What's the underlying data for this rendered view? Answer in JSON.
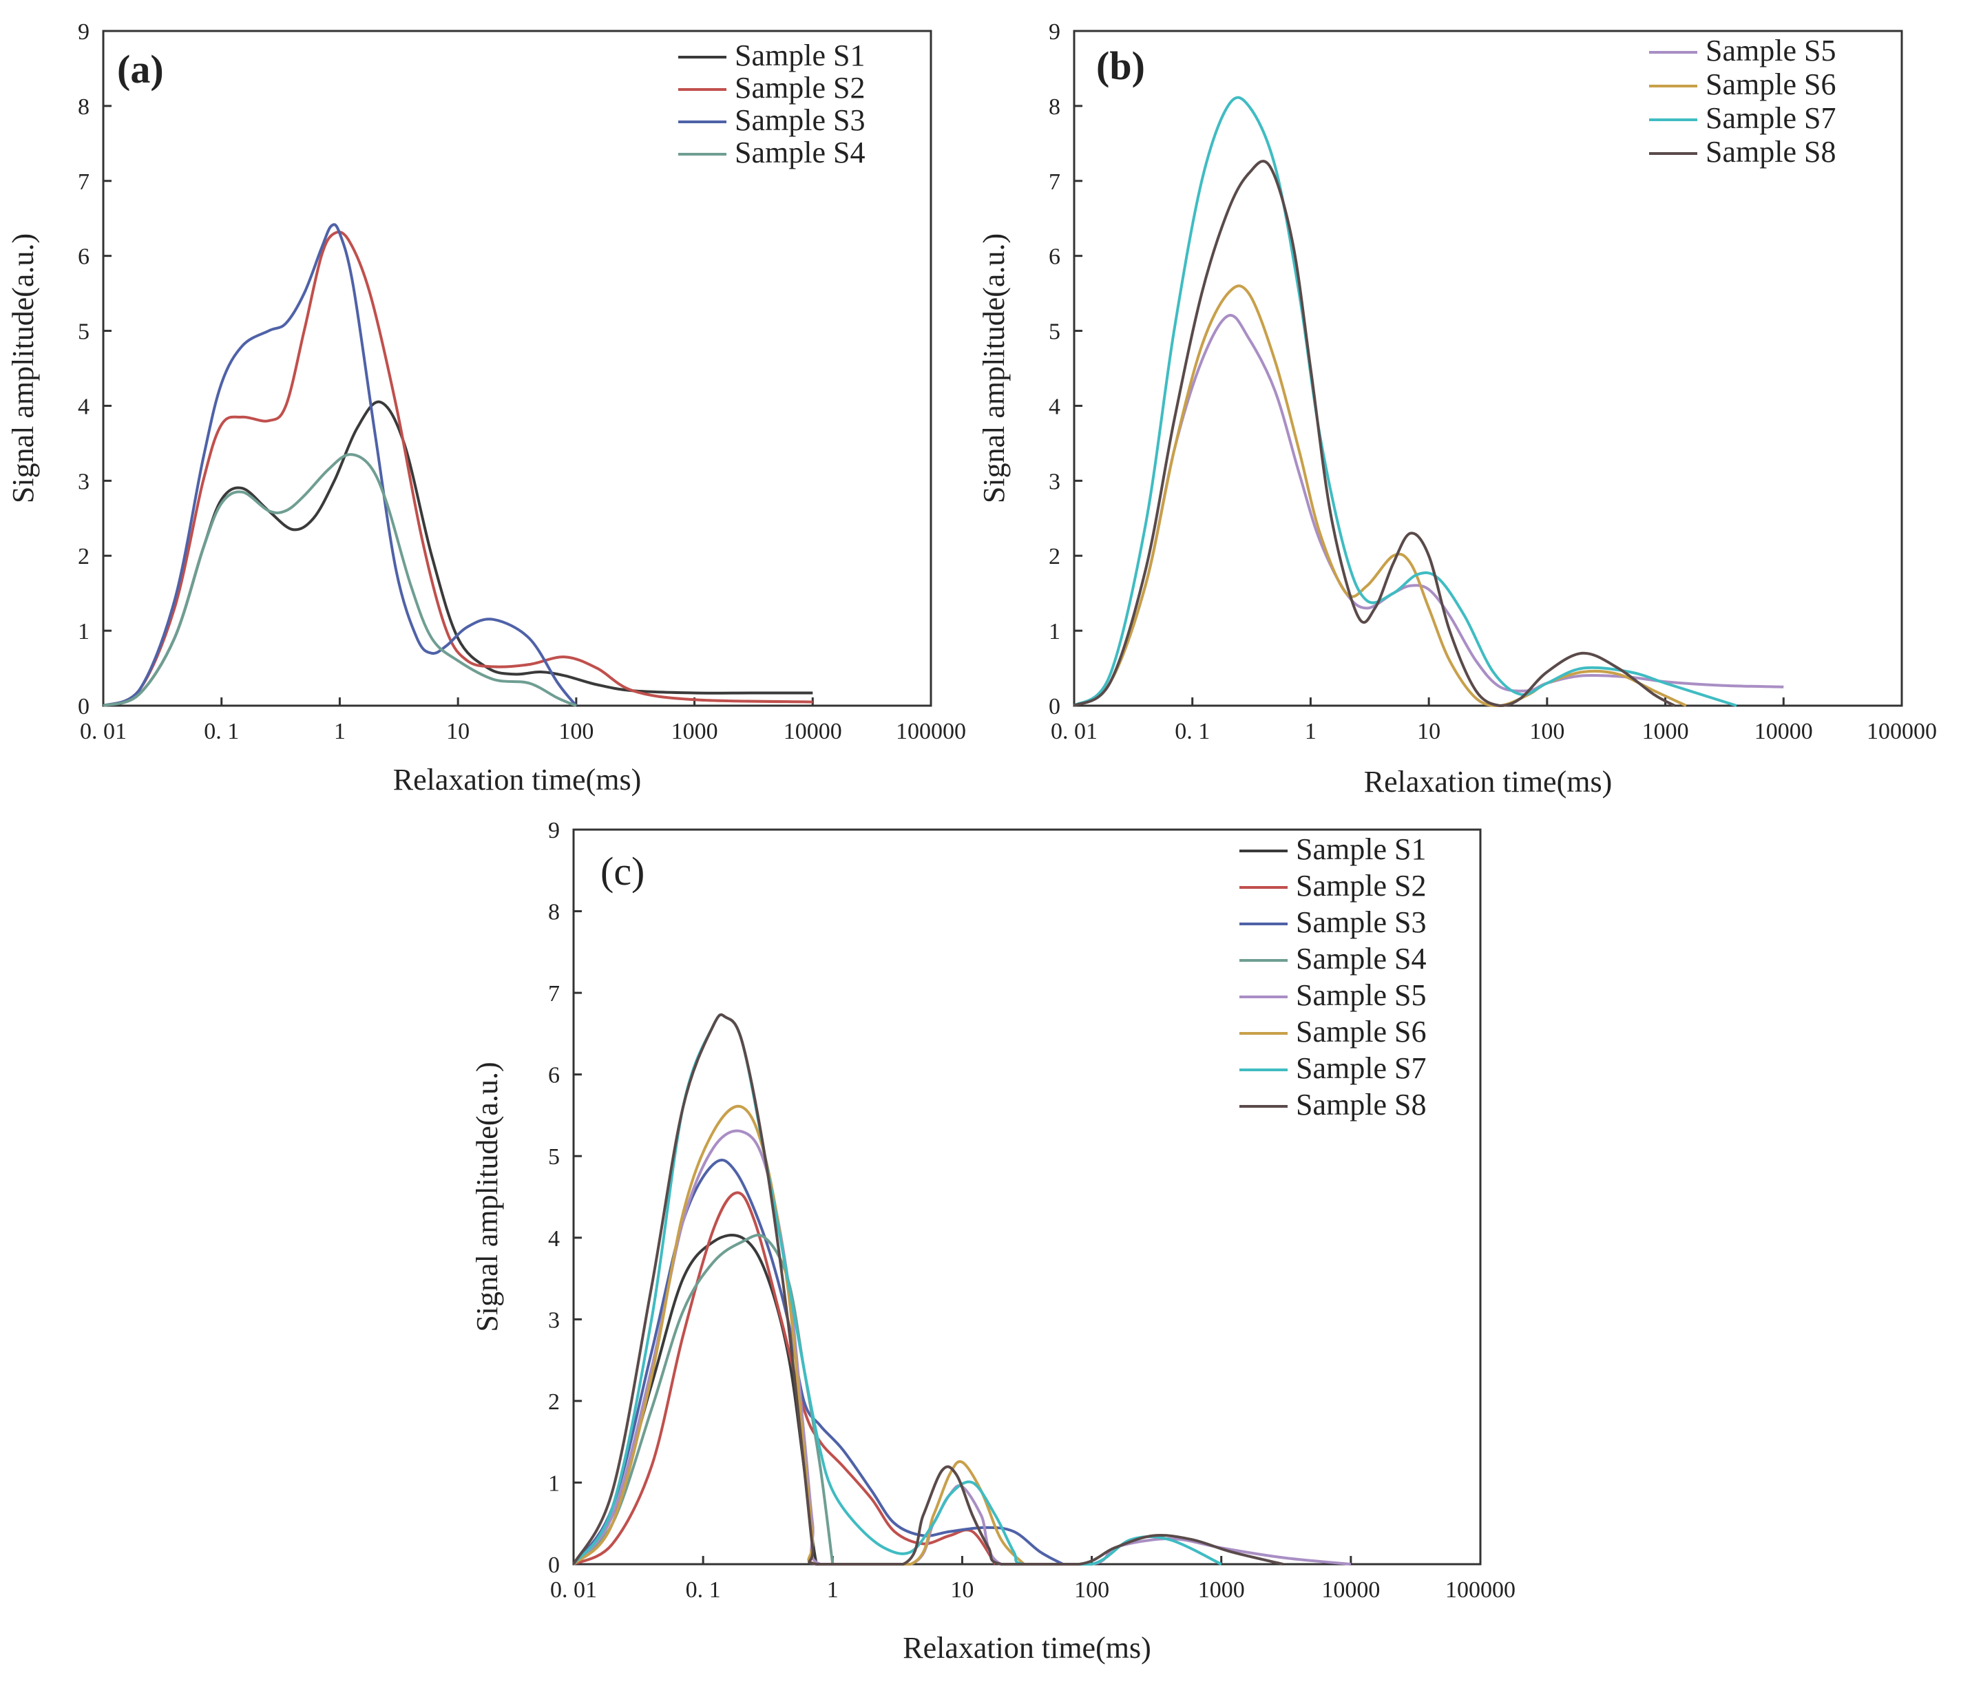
{
  "colors": {
    "S1": "#3a3a3a",
    "S2": "#c0504d",
    "S3": "#4f62a8",
    "S4": "#6f9e92",
    "S5": "#a98ec4",
    "S6": "#c8a04a",
    "S7": "#3fbcc2",
    "S8": "#5a4a4a"
  },
  "chart_data": [
    {
      "type": "line",
      "panel": "(a)",
      "xscale": "log",
      "xlim": [
        0.01,
        100000
      ],
      "ylim": [
        0,
        9
      ],
      "xticks": [
        0.01,
        0.1,
        1,
        10,
        100,
        1000,
        10000,
        100000
      ],
      "xtick_labels": [
        "0. 01",
        "0. 1",
        "1",
        "10",
        "100",
        "1000",
        "10000",
        "100000"
      ],
      "yticks": [
        0,
        1,
        2,
        3,
        4,
        5,
        6,
        7,
        8,
        9
      ],
      "ytick_labels": [
        "0",
        "1",
        "2",
        "3",
        "4",
        "5",
        "6",
        "7",
        "8",
        "9"
      ],
      "xlabel": "Relaxation time(ms)",
      "ylabel": "Signal amplitude(a.u.)",
      "legend_position": "top-right",
      "series": [
        {
          "name": "Sample S1",
          "key": "S1",
          "x": [
            0.01,
            0.02,
            0.04,
            0.07,
            0.1,
            0.15,
            0.25,
            0.4,
            0.6,
            0.9,
            1.4,
            2.2,
            3.5,
            6,
            10,
            18,
            30,
            50,
            80,
            150,
            300,
            1000,
            3000,
            10000
          ],
          "y": [
            0,
            0.15,
            0.9,
            2.1,
            2.75,
            2.9,
            2.6,
            2.35,
            2.5,
            3.0,
            3.7,
            4.05,
            3.5,
            2.0,
            0.9,
            0.5,
            0.42,
            0.45,
            0.4,
            0.28,
            0.2,
            0.17,
            0.17,
            0.17
          ]
        },
        {
          "name": "Sample S2",
          "key": "S2",
          "x": [
            0.01,
            0.02,
            0.04,
            0.07,
            0.1,
            0.15,
            0.25,
            0.35,
            0.5,
            0.7,
            0.9,
            1.2,
            1.8,
            3,
            5,
            8,
            12,
            20,
            40,
            80,
            150,
            300,
            1000,
            10000
          ],
          "y": [
            0,
            0.2,
            1.3,
            3.0,
            3.75,
            3.85,
            3.8,
            4.0,
            5.0,
            6.0,
            6.3,
            6.2,
            5.5,
            4.0,
            2.2,
            1.0,
            0.6,
            0.52,
            0.55,
            0.65,
            0.5,
            0.2,
            0.08,
            0.05
          ]
        },
        {
          "name": "Sample S3",
          "key": "S3",
          "x": [
            0.01,
            0.02,
            0.04,
            0.07,
            0.1,
            0.15,
            0.25,
            0.35,
            0.5,
            0.7,
            0.85,
            1.0,
            1.3,
            2,
            3,
            4.5,
            6,
            8,
            12,
            20,
            40,
            70,
            100
          ],
          "y": [
            0,
            0.2,
            1.4,
            3.3,
            4.3,
            4.8,
            5.0,
            5.1,
            5.5,
            6.1,
            6.4,
            6.3,
            5.6,
            3.6,
            1.8,
            0.9,
            0.7,
            0.8,
            1.05,
            1.15,
            0.9,
            0.3,
            0
          ]
        },
        {
          "name": "Sample S4",
          "key": "S4",
          "x": [
            0.01,
            0.02,
            0.04,
            0.07,
            0.1,
            0.15,
            0.25,
            0.35,
            0.5,
            0.8,
            1.2,
            1.8,
            2.5,
            4,
            6,
            10,
            20,
            40,
            70,
            100
          ],
          "y": [
            0,
            0.15,
            0.9,
            2.1,
            2.7,
            2.85,
            2.6,
            2.6,
            2.8,
            3.15,
            3.35,
            3.2,
            2.7,
            1.6,
            0.9,
            0.6,
            0.35,
            0.3,
            0.1,
            0
          ]
        }
      ]
    },
    {
      "type": "line",
      "panel": "(b)",
      "xscale": "log",
      "xlim": [
        0.01,
        100000
      ],
      "ylim": [
        0,
        9
      ],
      "xticks": [
        0.01,
        0.1,
        1,
        10,
        100,
        1000,
        10000,
        100000
      ],
      "xtick_labels": [
        "0. 01",
        "0. 1",
        "1",
        "10",
        "100",
        "1000",
        "10000",
        "100000"
      ],
      "yticks": [
        0,
        1,
        2,
        3,
        4,
        5,
        6,
        7,
        8,
        9
      ],
      "ytick_labels": [
        "0",
        "1",
        "2",
        "3",
        "4",
        "5",
        "6",
        "7",
        "8",
        "9"
      ],
      "xlabel": "Relaxation time(ms)",
      "ylabel": "Signal amplitude(a.u.)",
      "legend_position": "top-right",
      "series": [
        {
          "name": "Sample S5",
          "key": "S5",
          "x": [
            0.01,
            0.02,
            0.04,
            0.07,
            0.12,
            0.2,
            0.3,
            0.5,
            0.8,
            1.2,
            2,
            3,
            5,
            7,
            10,
            15,
            25,
            40,
            70,
            100,
            200,
            500,
            1000,
            3000,
            10000
          ],
          "y": [
            0,
            0.3,
            1.6,
            3.4,
            4.6,
            5.2,
            4.9,
            4.2,
            3.1,
            2.2,
            1.5,
            1.3,
            1.5,
            1.6,
            1.55,
            1.2,
            0.6,
            0.25,
            0.2,
            0.3,
            0.4,
            0.38,
            0.32,
            0.27,
            0.25
          ]
        },
        {
          "name": "Sample S6",
          "key": "S6",
          "x": [
            0.01,
            0.02,
            0.04,
            0.07,
            0.12,
            0.2,
            0.3,
            0.5,
            0.8,
            1.2,
            2,
            3,
            5,
            7,
            10,
            15,
            25,
            40,
            70,
            100,
            200,
            400,
            800,
            1500
          ],
          "y": [
            0,
            0.3,
            1.6,
            3.4,
            4.8,
            5.5,
            5.5,
            4.6,
            3.4,
            2.3,
            1.5,
            1.6,
            2.0,
            1.9,
            1.3,
            0.6,
            0.1,
            0,
            0.15,
            0.3,
            0.45,
            0.42,
            0.2,
            0
          ]
        },
        {
          "name": "Sample S7",
          "key": "S7",
          "x": [
            0.01,
            0.02,
            0.04,
            0.07,
            0.12,
            0.2,
            0.3,
            0.5,
            0.8,
            1.2,
            2,
            3,
            5,
            8,
            12,
            20,
            35,
            60,
            100,
            200,
            500,
            1000,
            2000,
            4000
          ],
          "y": [
            0,
            0.4,
            2.4,
            5.0,
            7.0,
            8.0,
            8.0,
            7.2,
            5.5,
            3.6,
            2.0,
            1.4,
            1.5,
            1.75,
            1.7,
            1.2,
            0.45,
            0.15,
            0.3,
            0.5,
            0.45,
            0.3,
            0.15,
            0
          ]
        },
        {
          "name": "Sample S8",
          "key": "S8",
          "x": [
            0.01,
            0.02,
            0.04,
            0.07,
            0.12,
            0.2,
            0.3,
            0.45,
            0.7,
            1.0,
            1.5,
            2.5,
            3.5,
            5,
            7,
            10,
            15,
            25,
            40,
            60,
            100,
            200,
            400,
            800,
            1200
          ],
          "y": [
            0,
            0.3,
            1.8,
            3.8,
            5.5,
            6.6,
            7.1,
            7.2,
            6.2,
            4.5,
            2.5,
            1.2,
            1.3,
            1.9,
            2.3,
            2.0,
            1.0,
            0.2,
            0,
            0.1,
            0.45,
            0.7,
            0.5,
            0.15,
            0
          ]
        }
      ]
    },
    {
      "type": "line",
      "panel": "(c)",
      "xscale": "log",
      "xlim": [
        0.01,
        100000
      ],
      "ylim": [
        0,
        9
      ],
      "xticks": [
        0.01,
        0.1,
        1,
        10,
        100,
        1000,
        10000,
        100000
      ],
      "xtick_labels": [
        "0. 01",
        "0. 1",
        "1",
        "10",
        "100",
        "1000",
        "10000",
        "100000"
      ],
      "yticks": [
        0,
        1,
        2,
        3,
        4,
        5,
        6,
        7,
        8,
        9
      ],
      "ytick_labels": [
        "0",
        "1",
        "2",
        "3",
        "4",
        "5",
        "6",
        "7",
        "8",
        "9"
      ],
      "xlabel": "Relaxation time(ms)",
      "ylabel": "Signal amplitude(a.u.)",
      "legend_position": "top-right",
      "series": [
        {
          "name": "Sample S1",
          "key": "S1",
          "x": [
            0.01,
            0.02,
            0.04,
            0.07,
            0.12,
            0.2,
            0.3,
            0.45,
            0.6,
            0.7,
            0.75
          ],
          "y": [
            0,
            0.6,
            2.2,
            3.5,
            3.95,
            4.0,
            3.6,
            2.6,
            1.2,
            0.3,
            0
          ]
        },
        {
          "name": "Sample S2",
          "key": "S2",
          "x": [
            0.01,
            0.02,
            0.04,
            0.07,
            0.12,
            0.18,
            0.25,
            0.4,
            0.6,
            0.8,
            1.2,
            2,
            3,
            5,
            8,
            12,
            18
          ],
          "y": [
            0,
            0.25,
            1.2,
            2.8,
            4.1,
            4.55,
            4.2,
            3.0,
            1.9,
            1.5,
            1.2,
            0.8,
            0.4,
            0.25,
            0.35,
            0.4,
            0
          ]
        },
        {
          "name": "Sample S3",
          "key": "S3",
          "x": [
            0.01,
            0.02,
            0.04,
            0.07,
            0.12,
            0.18,
            0.3,
            0.45,
            0.6,
            0.8,
            1.2,
            2,
            3,
            5,
            8,
            15,
            25,
            40,
            60
          ],
          "y": [
            0,
            0.7,
            2.6,
            4.2,
            4.9,
            4.8,
            4.0,
            3.0,
            2.0,
            1.7,
            1.4,
            0.9,
            0.5,
            0.35,
            0.4,
            0.45,
            0.4,
            0.15,
            0
          ]
        },
        {
          "name": "Sample S4",
          "key": "S4",
          "x": [
            0.01,
            0.02,
            0.04,
            0.07,
            0.12,
            0.2,
            0.3,
            0.45,
            0.6,
            0.8,
            1.0
          ],
          "y": [
            0,
            0.5,
            1.9,
            3.1,
            3.7,
            3.95,
            4.0,
            3.5,
            2.4,
            1.2,
            0
          ]
        },
        {
          "name": "Sample S5",
          "key": "S5",
          "x": [
            0.01,
            0.02,
            0.04,
            0.07,
            0.12,
            0.2,
            0.3,
            0.45,
            0.6,
            0.7,
            0.8,
            4,
            6,
            8,
            10,
            14,
            20,
            100,
            150,
            300,
            500,
            1000,
            3000,
            10000
          ],
          "y": [
            0,
            0.6,
            2.4,
            4.2,
            5.1,
            5.3,
            4.9,
            3.5,
            1.6,
            0.5,
            0,
            0,
            0.5,
            0.85,
            0.95,
            0.6,
            0,
            0,
            0.2,
            0.3,
            0.3,
            0.2,
            0.08,
            0
          ]
        },
        {
          "name": "Sample S6",
          "key": "S6",
          "x": [
            0.01,
            0.02,
            0.04,
            0.07,
            0.12,
            0.2,
            0.3,
            0.45,
            0.6,
            0.7,
            0.75,
            4,
            6,
            8,
            10,
            14,
            20,
            30
          ],
          "y": [
            0,
            0.5,
            2.3,
            4.3,
            5.3,
            5.6,
            5.0,
            3.4,
            1.4,
            0.3,
            0,
            0,
            0.6,
            1.1,
            1.25,
            0.9,
            0.3,
            0
          ]
        },
        {
          "name": "Sample S7",
          "key": "S7",
          "x": [
            0.01,
            0.02,
            0.04,
            0.07,
            0.12,
            0.15,
            0.2,
            0.3,
            0.45,
            0.6,
            0.8,
            1.0,
            1.5,
            2.5,
            4,
            6,
            8,
            12,
            18,
            25,
            30,
            100,
            200,
            400,
            1000
          ],
          "y": [
            0,
            0.7,
            3.0,
            5.6,
            6.6,
            6.7,
            6.4,
            5.0,
            3.5,
            2.4,
            1.4,
            0.9,
            0.5,
            0.2,
            0.15,
            0.5,
            0.85,
            1.0,
            0.6,
            0.15,
            0,
            0,
            0.3,
            0.3,
            0
          ]
        },
        {
          "name": "Sample S8",
          "key": "S8",
          "x": [
            0.01,
            0.02,
            0.04,
            0.07,
            0.12,
            0.15,
            0.2,
            0.3,
            0.45,
            0.6,
            0.7,
            0.75,
            3.5,
            5,
            7,
            9,
            12,
            16,
            20,
            80,
            150,
            300,
            600,
            1200,
            3000
          ],
          "y": [
            0,
            0.9,
            3.4,
            5.6,
            6.6,
            6.7,
            6.4,
            5.0,
            3.0,
            1.2,
            0.2,
            0,
            0,
            0.6,
            1.15,
            1.1,
            0.6,
            0.2,
            0,
            0,
            0.2,
            0.35,
            0.3,
            0.15,
            0
          ]
        }
      ]
    }
  ]
}
